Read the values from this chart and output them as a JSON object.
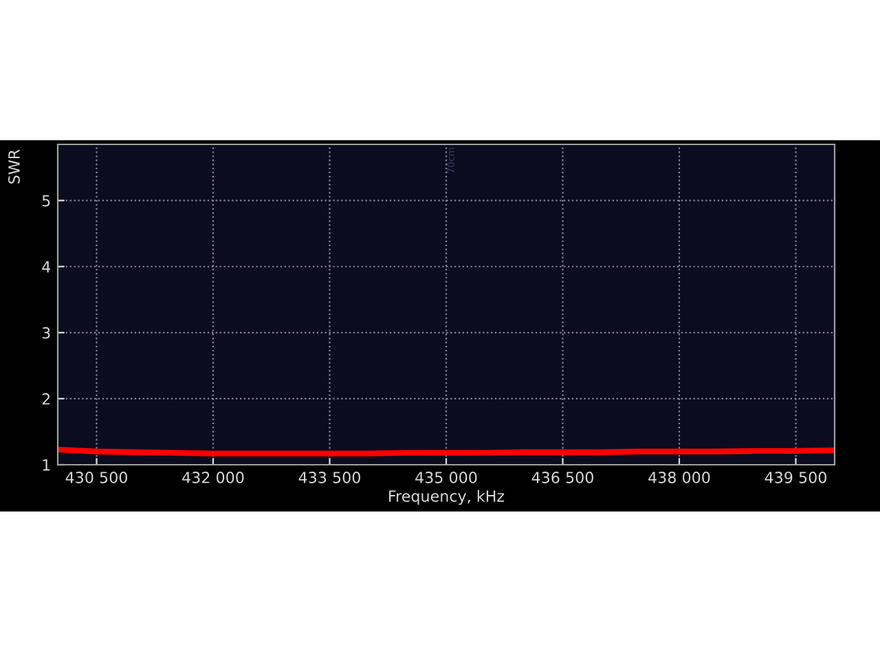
{
  "chart_data": {
    "type": "line",
    "xlabel": "Frequency, kHz",
    "ylabel": "SWR",
    "x": [
      430000,
      430500,
      431000,
      431500,
      432000,
      432500,
      433000,
      433500,
      434000,
      434500,
      435000,
      435500,
      436000,
      436500,
      437000,
      437500,
      438000,
      438500,
      439000,
      439500,
      440000
    ],
    "series": [
      {
        "color": "#ff0000",
        "values": [
          1.23,
          1.2,
          1.19,
          1.18,
          1.17,
          1.17,
          1.17,
          1.17,
          1.17,
          1.18,
          1.18,
          1.18,
          1.19,
          1.19,
          1.19,
          1.2,
          1.2,
          1.2,
          1.21,
          1.21,
          1.22
        ]
      }
    ],
    "xlim": [
      430000,
      440000
    ],
    "ylim": [
      1,
      5.85
    ],
    "xticks": [
      {
        "value": 430500,
        "label": "430 500"
      },
      {
        "value": 432000,
        "label": "432 000"
      },
      {
        "value": 433500,
        "label": "433 500"
      },
      {
        "value": 435000,
        "label": "435 000"
      },
      {
        "value": 436500,
        "label": "436 500"
      },
      {
        "value": 438000,
        "label": "438 000"
      },
      {
        "value": 439500,
        "label": "439 500"
      }
    ],
    "yticks": [
      1,
      2,
      3,
      4,
      5
    ],
    "grid": true,
    "marker": "none",
    "line_style": "solid",
    "annotations": [
      "70cm"
    ]
  }
}
